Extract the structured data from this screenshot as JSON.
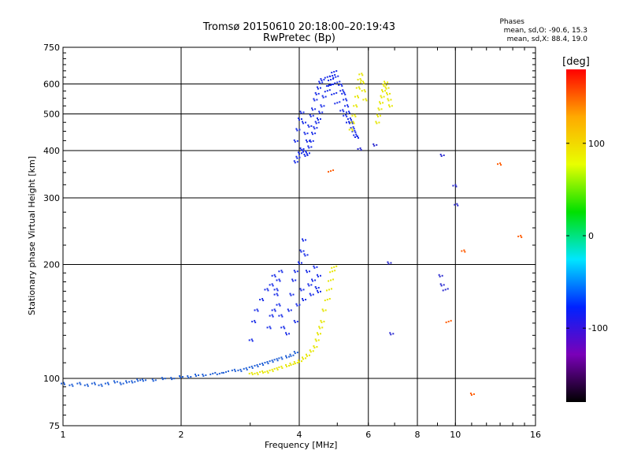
{
  "chart_data": {
    "type": "scatter",
    "title": "Tromsø 20150610 20:18:00–20:19:43",
    "subtitle": "RwPretec (Bp)",
    "xlabel": "Frequency [MHz]",
    "ylabel": "Stationary phase Virtual Height [km]",
    "x_scale": "log",
    "y_scale": "log",
    "xlim": [
      1,
      16
    ],
    "ylim": [
      75,
      750
    ],
    "x_ticks": [
      "1",
      "2",
      "4",
      "6",
      "8",
      "10",
      "16"
    ],
    "y_ticks": [
      "75",
      "100",
      "200",
      "300",
      "400",
      "500",
      "600",
      "750"
    ],
    "grid": true,
    "phases": {
      "header": "Phases",
      "o_line": "mean, sd,O: -90.6, 15.3",
      "x_line": "mean, sd,X: 88.4, 19.0"
    },
    "colorbar": {
      "label": "[deg]",
      "range": [
        -180,
        180
      ],
      "ticks": [
        "100",
        "0",
        "-100"
      ],
      "colors": [
        "#000000",
        "#7a00b8",
        "#0022ff",
        "#00e6ff",
        "#00e000",
        "#e8ff00",
        "#ffaa00",
        "#ff0000"
      ]
    },
    "series": [
      {
        "phase": -90,
        "color": "#1f5fd6",
        "points": [
          [
            1.0,
            96
          ],
          [
            1.05,
            95
          ],
          [
            1.1,
            96
          ],
          [
            1.15,
            95
          ],
          [
            1.2,
            96
          ],
          [
            1.25,
            95
          ],
          [
            1.3,
            96
          ],
          [
            1.35,
            97
          ],
          [
            1.4,
            96
          ],
          [
            1.45,
            97
          ],
          [
            1.5,
            97
          ],
          [
            1.55,
            98
          ],
          [
            1.6,
            98
          ],
          [
            1.7,
            98
          ],
          [
            1.8,
            99
          ],
          [
            1.9,
            99
          ],
          [
            2.0,
            100
          ],
          [
            2.1,
            100
          ],
          [
            2.2,
            101
          ],
          [
            2.3,
            101
          ],
          [
            2.4,
            102
          ],
          [
            2.5,
            102
          ],
          [
            2.6,
            103
          ],
          [
            2.7,
            104
          ],
          [
            2.8,
            104
          ],
          [
            2.9,
            105
          ],
          [
            3.0,
            106
          ],
          [
            3.1,
            107
          ],
          [
            3.2,
            108
          ],
          [
            3.3,
            109
          ],
          [
            3.4,
            110
          ],
          [
            3.5,
            111
          ],
          [
            3.6,
            112
          ],
          [
            3.7,
            113
          ],
          [
            3.8,
            114
          ],
          [
            3.9,
            116
          ]
        ]
      },
      {
        "phase": -110,
        "color": "#1a2ee8",
        "points": [
          [
            3.0,
            125
          ],
          [
            3.05,
            140
          ],
          [
            3.1,
            150
          ],
          [
            3.2,
            160
          ],
          [
            3.3,
            170
          ],
          [
            3.4,
            175
          ],
          [
            3.45,
            185
          ],
          [
            3.5,
            170
          ],
          [
            3.55,
            155
          ],
          [
            3.6,
            145
          ],
          [
            3.65,
            135
          ],
          [
            3.7,
            130
          ],
          [
            3.75,
            150
          ],
          [
            3.8,
            165
          ],
          [
            3.85,
            180
          ],
          [
            3.9,
            190
          ],
          [
            4.0,
            200
          ],
          [
            4.05,
            215
          ],
          [
            4.1,
            230
          ],
          [
            4.15,
            210
          ],
          [
            4.2,
            190
          ],
          [
            4.25,
            175
          ],
          [
            4.3,
            165
          ],
          [
            4.35,
            180
          ],
          [
            4.4,
            195
          ],
          [
            4.5,
            185
          ],
          [
            3.6,
            190
          ],
          [
            3.55,
            180
          ],
          [
            3.5,
            165
          ],
          [
            3.45,
            150
          ],
          [
            3.4,
            145
          ],
          [
            3.35,
            135
          ],
          [
            3.9,
            140
          ],
          [
            3.95,
            155
          ],
          [
            4.05,
            170
          ],
          [
            4.1,
            160
          ],
          [
            4.45,
            172
          ],
          [
            4.5,
            168
          ]
        ]
      },
      {
        "phase": -115,
        "color": "#1a2ee8",
        "points": [
          [
            3.9,
            370
          ],
          [
            3.95,
            380
          ],
          [
            4.0,
            390
          ],
          [
            4.05,
            400
          ],
          [
            4.1,
            395
          ],
          [
            4.15,
            385
          ],
          [
            4.2,
            390
          ],
          [
            4.25,
            405
          ],
          [
            4.3,
            420
          ],
          [
            4.35,
            440
          ],
          [
            4.4,
            455
          ],
          [
            4.45,
            470
          ],
          [
            4.5,
            480
          ],
          [
            4.55,
            500
          ],
          [
            4.6,
            520
          ],
          [
            4.65,
            550
          ],
          [
            4.7,
            570
          ],
          [
            4.75,
            590
          ],
          [
            4.8,
            610
          ],
          [
            4.85,
            625
          ],
          [
            4.9,
            640
          ],
          [
            4.95,
            620
          ],
          [
            5.0,
            600
          ],
          [
            5.05,
            590
          ],
          [
            5.1,
            570
          ],
          [
            5.15,
            560
          ],
          [
            5.2,
            540
          ],
          [
            5.25,
            520
          ],
          [
            5.3,
            500
          ],
          [
            5.35,
            480
          ],
          [
            5.4,
            470
          ],
          [
            5.45,
            455
          ],
          [
            5.5,
            445
          ],
          [
            5.55,
            435
          ],
          [
            5.6,
            430
          ],
          [
            3.9,
            420
          ],
          [
            3.95,
            450
          ],
          [
            4.0,
            480
          ],
          [
            4.05,
            500
          ],
          [
            4.1,
            470
          ],
          [
            4.15,
            440
          ],
          [
            4.2,
            420
          ],
          [
            4.25,
            460
          ],
          [
            4.3,
            490
          ],
          [
            4.35,
            510
          ],
          [
            4.4,
            540
          ],
          [
            4.45,
            560
          ],
          [
            4.5,
            580
          ],
          [
            4.55,
            600
          ],
          [
            4.6,
            610
          ],
          [
            4.7,
            620
          ],
          [
            4.8,
            590
          ],
          [
            4.9,
            560
          ],
          [
            5.0,
            530
          ],
          [
            5.1,
            505
          ],
          [
            5.2,
            490
          ],
          [
            5.3,
            470
          ]
        ]
      },
      {
        "phase": 95,
        "color": "#e6e600",
        "points": [
          [
            3.0,
            102
          ],
          [
            3.1,
            102
          ],
          [
            3.2,
            103
          ],
          [
            3.3,
            103
          ],
          [
            3.4,
            104
          ],
          [
            3.5,
            105
          ],
          [
            3.6,
            106
          ],
          [
            3.7,
            107
          ],
          [
            3.8,
            108
          ],
          [
            3.9,
            109
          ],
          [
            4.0,
            110
          ],
          [
            4.1,
            112
          ],
          [
            4.2,
            114
          ],
          [
            4.3,
            117
          ],
          [
            4.4,
            120
          ],
          [
            4.45,
            125
          ],
          [
            4.5,
            130
          ],
          [
            4.55,
            135
          ],
          [
            4.6,
            140
          ],
          [
            4.65,
            150
          ],
          [
            4.7,
            160
          ],
          [
            4.75,
            170
          ],
          [
            4.8,
            180
          ],
          [
            4.85,
            190
          ],
          [
            4.9,
            195
          ],
          [
            5.4,
            450
          ],
          [
            5.45,
            470
          ],
          [
            5.5,
            490
          ],
          [
            5.55,
            520
          ],
          [
            5.6,
            550
          ],
          [
            5.65,
            580
          ],
          [
            5.7,
            610
          ],
          [
            5.75,
            630
          ],
          [
            5.8,
            600
          ],
          [
            5.85,
            570
          ],
          [
            5.9,
            540
          ],
          [
            6.3,
            470
          ],
          [
            6.35,
            490
          ],
          [
            6.4,
            510
          ],
          [
            6.45,
            530
          ],
          [
            6.5,
            550
          ],
          [
            6.55,
            570
          ],
          [
            6.6,
            590
          ],
          [
            6.65,
            600
          ],
          [
            6.7,
            580
          ],
          [
            6.75,
            560
          ],
          [
            6.8,
            540
          ],
          [
            6.85,
            520
          ]
        ]
      },
      {
        "phase": -130,
        "color": "#2a2ad0",
        "points": [
          [
            9.3,
            385
          ],
          [
            9.9,
            320
          ],
          [
            10.0,
            285
          ],
          [
            9.2,
            185
          ],
          [
            9.3,
            175
          ],
          [
            9.4,
            170
          ],
          [
            6.8,
            200
          ],
          [
            6.9,
            130
          ],
          [
            5.7,
            400
          ],
          [
            6.2,
            410
          ]
        ]
      },
      {
        "phase": 170,
        "color": "#ff5a00",
        "points": [
          [
            11.0,
            90
          ],
          [
            13.0,
            365
          ],
          [
            14.5,
            235
          ],
          [
            10.5,
            215
          ],
          [
            9.6,
            140
          ],
          [
            4.8,
            350
          ]
        ]
      }
    ]
  }
}
